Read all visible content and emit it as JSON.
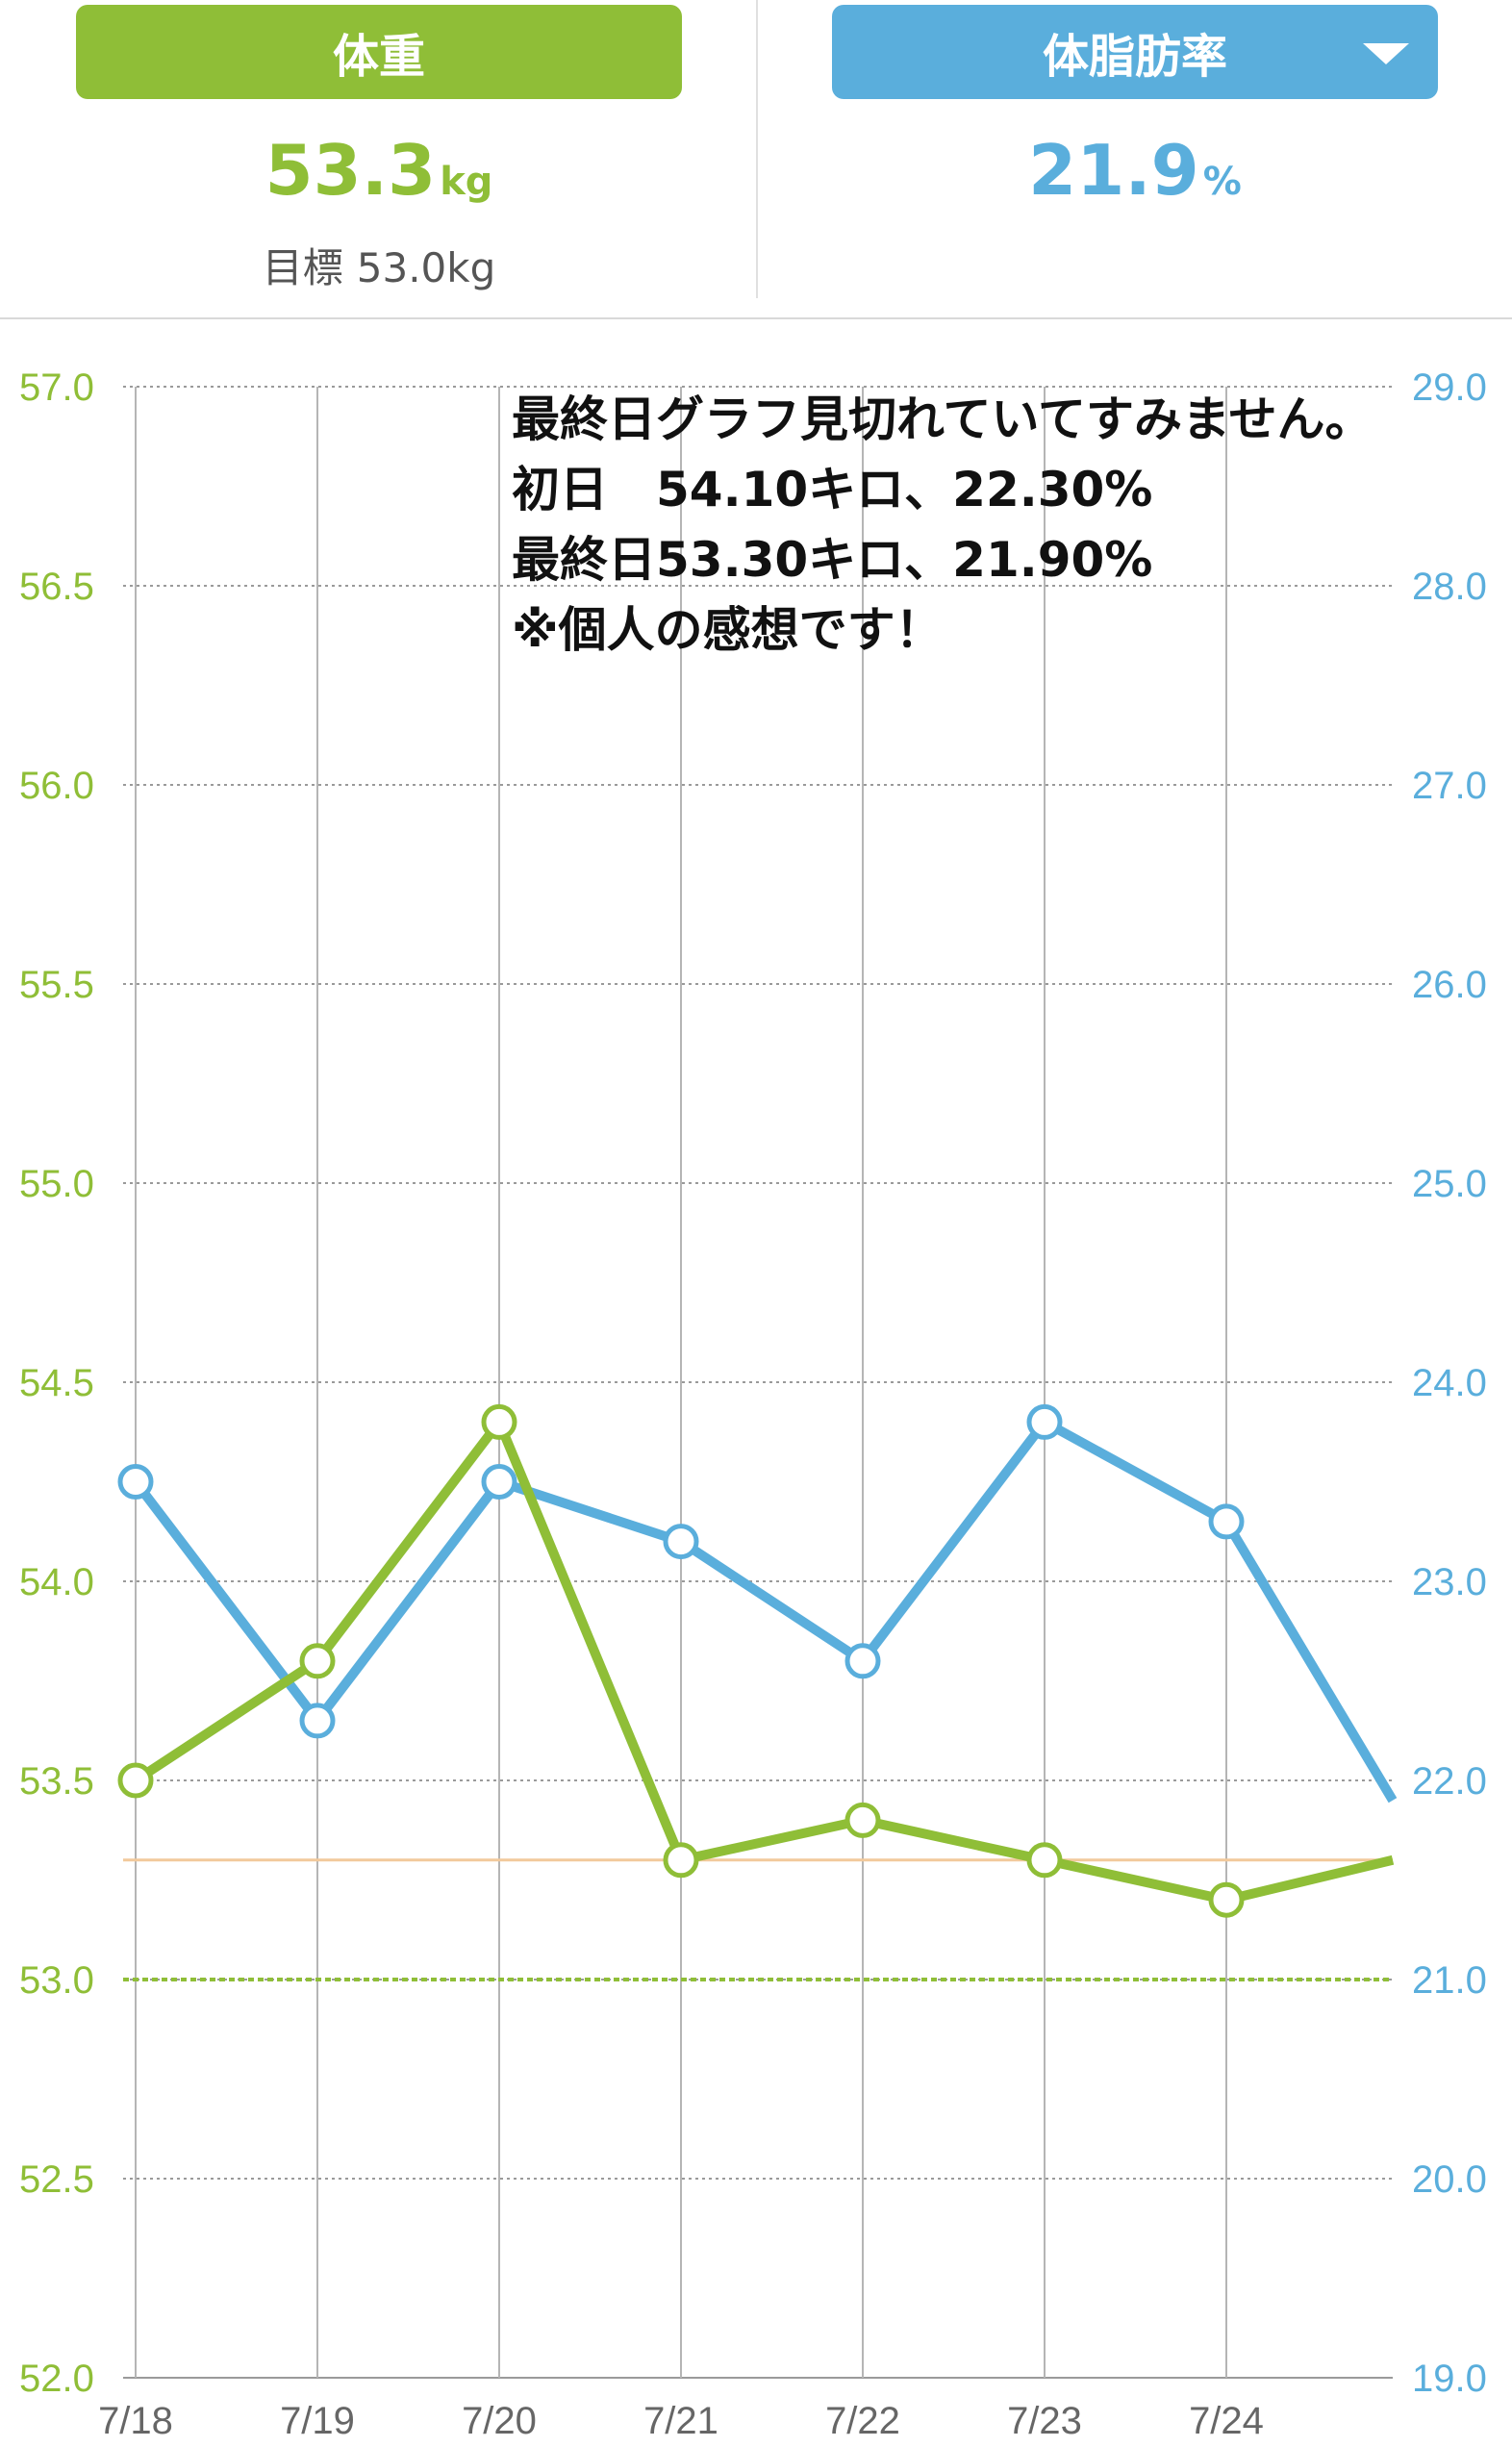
{
  "header": {
    "weight_tab": "体重",
    "fat_tab": "体脂肪率",
    "weight_value": "53.3",
    "weight_unit": "kg",
    "fat_value": "21.9",
    "fat_unit": "%",
    "goal_label": "目標",
    "goal_value": "53.0kg"
  },
  "note": {
    "line1": "最終日グラフ見切れていてすみません。",
    "line2": "初日　54.10キロ、22.30%",
    "line3": "最終日53.30キロ、21.90%",
    "line4": "※個人の感想です！"
  },
  "colors": {
    "weight": "#8fbe37",
    "fat": "#5aaedc",
    "goal_line": "#8fbe37",
    "current_line": "#f2c99b"
  },
  "chart_data": {
    "type": "line",
    "categories": [
      "7/18",
      "7/19",
      "7/20",
      "7/21",
      "7/22",
      "7/23",
      "7/24"
    ],
    "series": [
      {
        "axis": "left",
        "values": [
          53.5,
          53.8,
          54.4,
          53.3,
          53.4,
          53.3,
          53.2
        ],
        "clipped_next_value": 53.3
      },
      {
        "axis": "right",
        "values": [
          23.5,
          22.3,
          23.5,
          23.2,
          22.6,
          23.8,
          23.3
        ],
        "clipped_next_value": 21.9
      }
    ],
    "y_left": {
      "range": [
        52.0,
        57.0
      ],
      "ticks": [
        "52.0",
        "52.5",
        "53.0",
        "53.5",
        "54.0",
        "54.5",
        "55.0",
        "55.5",
        "56.0",
        "56.5",
        "57.0"
      ]
    },
    "y_right": {
      "range": [
        19.0,
        29.0
      ],
      "ticks": [
        "19.0",
        "20.0",
        "21.0",
        "22.0",
        "23.0",
        "24.0",
        "25.0",
        "26.0",
        "27.0",
        "28.0",
        "29.0"
      ]
    },
    "goal_weight": 53.0,
    "current_weight": 53.3,
    "grid": true
  }
}
